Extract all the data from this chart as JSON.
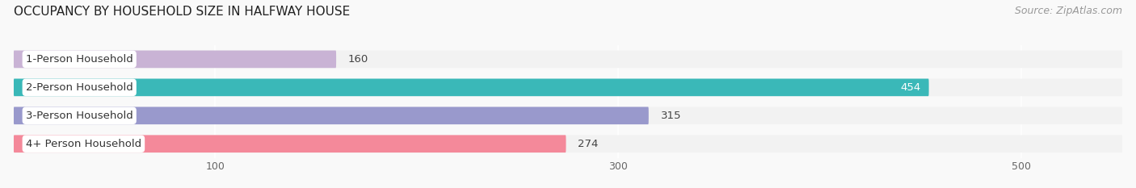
{
  "title": "OCCUPANCY BY HOUSEHOLD SIZE IN HALFWAY HOUSE",
  "source": "Source: ZipAtlas.com",
  "categories": [
    "1-Person Household",
    "2-Person Household",
    "3-Person Household",
    "4+ Person Household"
  ],
  "values": [
    160,
    454,
    315,
    274
  ],
  "bar_colors": [
    "#c9b3d5",
    "#3ab8b8",
    "#9999cc",
    "#f4899a"
  ],
  "bg_color": "#f2f2f2",
  "fig_bg_color": "#f9f9f9",
  "xlim": [
    0,
    550
  ],
  "xticks": [
    100,
    300,
    500
  ],
  "title_fontsize": 11,
  "source_fontsize": 9,
  "label_fontsize": 9.5,
  "value_fontsize": 9.5
}
